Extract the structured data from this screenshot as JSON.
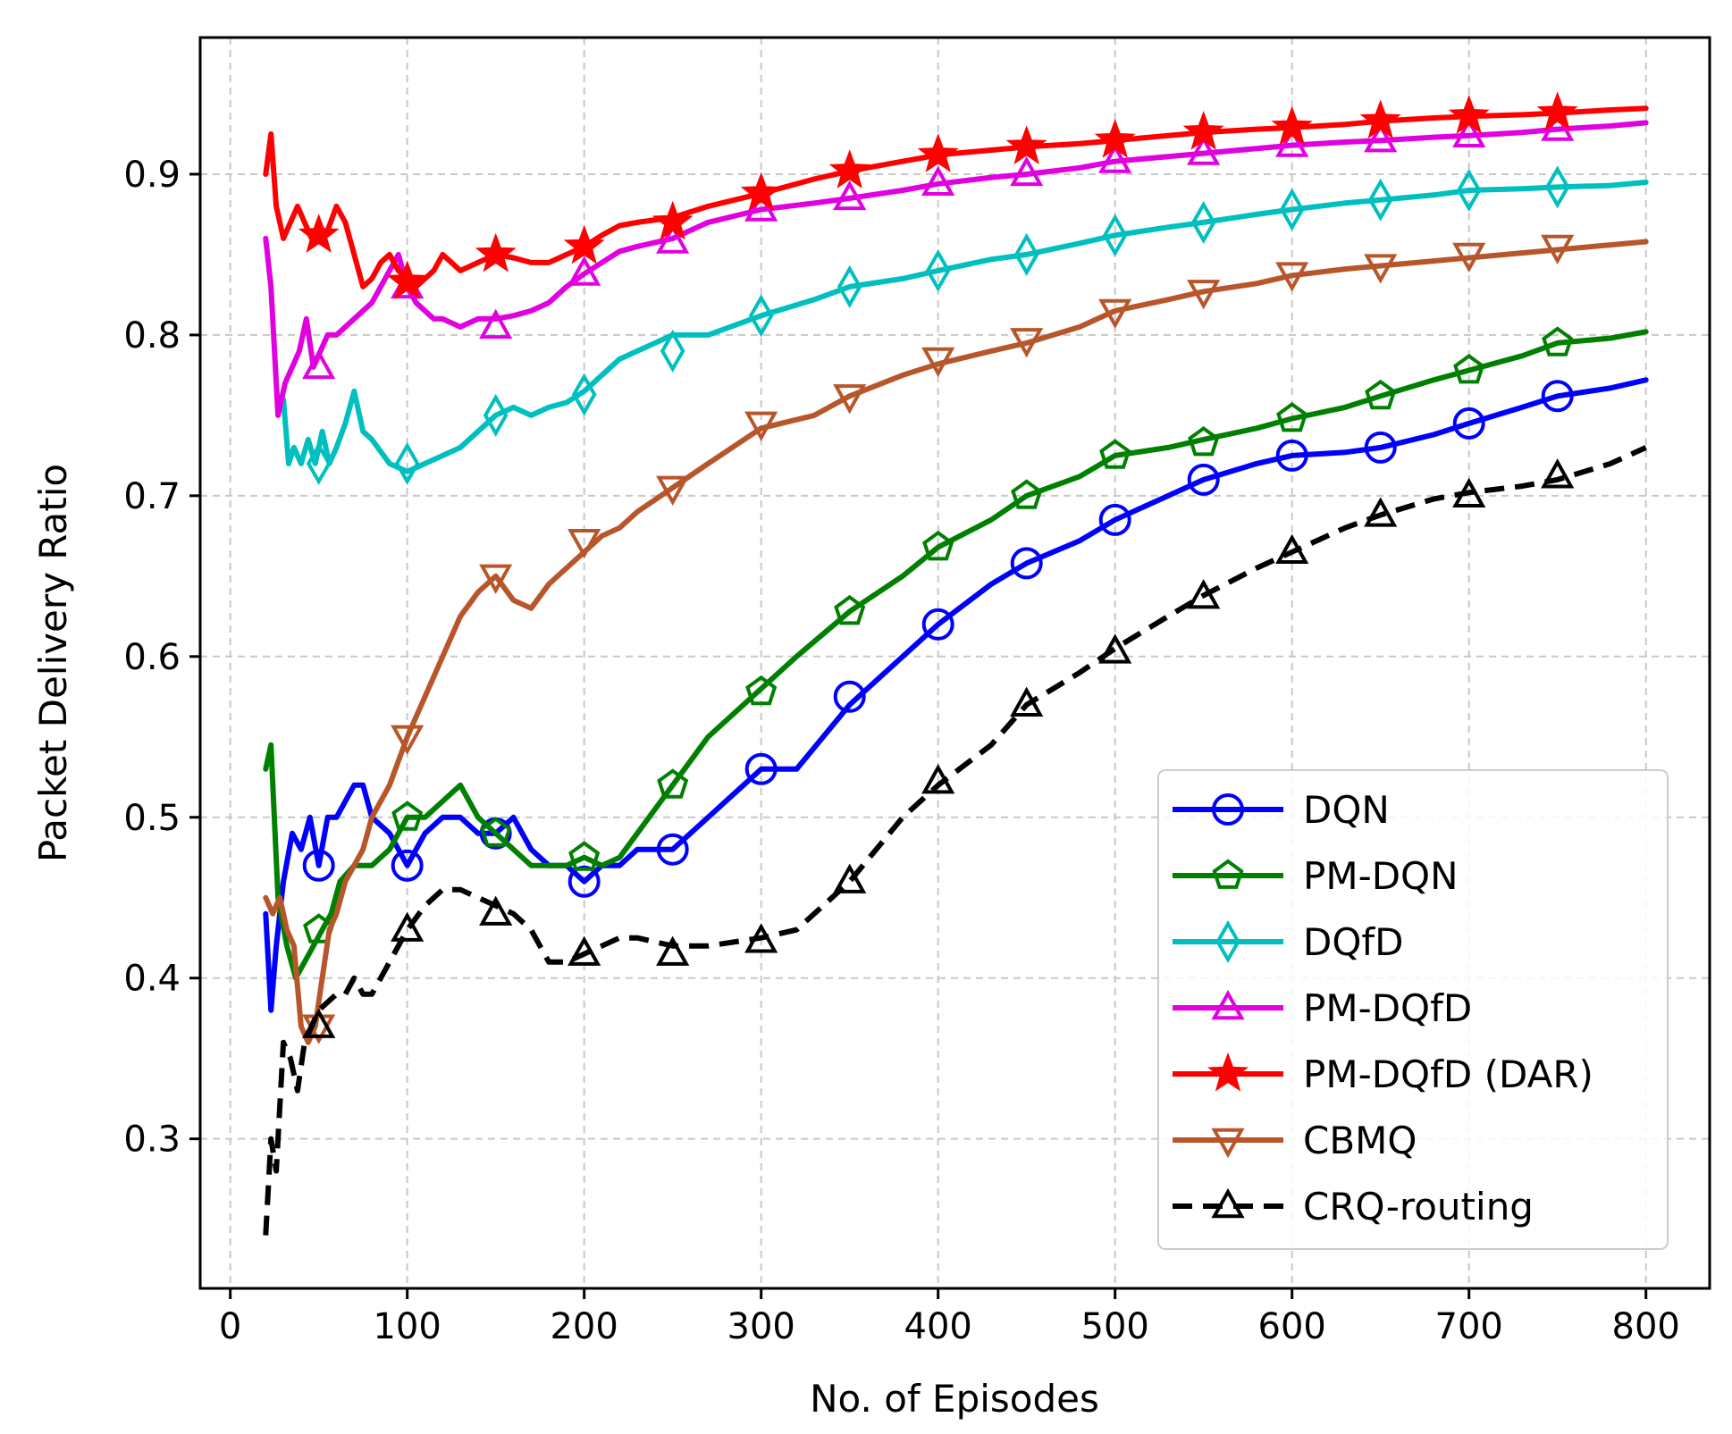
{
  "chart_data": {
    "type": "line",
    "title": "",
    "xlabel": "No. of Episodes",
    "ylabel": "Packet Delivery Ratio",
    "xlim": [
      -17,
      836
    ],
    "ylim": [
      0.207,
      0.985
    ],
    "xticks": [
      0,
      100,
      200,
      300,
      400,
      500,
      600,
      700,
      800
    ],
    "xtick_labels": [
      "0",
      "100",
      "200",
      "300",
      "400",
      "500",
      "600",
      "700",
      "800"
    ],
    "yticks": [
      0.3,
      0.4,
      0.5,
      0.6,
      0.7,
      0.8,
      0.9
    ],
    "ytick_labels": [
      "0.3",
      "0.4",
      "0.5",
      "0.6",
      "0.7",
      "0.8",
      "0.9"
    ],
    "grid": true,
    "legend_position": "lower-right",
    "series": [
      {
        "name": "DQN",
        "color": "#0000ff",
        "marker": "circle",
        "dash": "solid",
        "x": [
          20,
          23,
          26,
          30,
          35,
          40,
          45,
          50,
          55,
          60,
          65,
          70,
          75,
          80,
          90,
          100,
          110,
          120,
          130,
          140,
          150,
          160,
          170,
          180,
          190,
          200,
          210,
          220,
          230,
          250,
          270,
          300,
          320,
          350,
          380,
          400,
          430,
          450,
          480,
          500,
          530,
          550,
          580,
          600,
          630,
          650,
          680,
          700,
          730,
          750,
          780,
          800
        ],
        "y": [
          0.44,
          0.38,
          0.42,
          0.46,
          0.49,
          0.48,
          0.5,
          0.47,
          0.5,
          0.5,
          0.51,
          0.52,
          0.52,
          0.5,
          0.49,
          0.47,
          0.49,
          0.5,
          0.5,
          0.49,
          0.49,
          0.5,
          0.48,
          0.47,
          0.47,
          0.46,
          0.47,
          0.47,
          0.48,
          0.48,
          0.5,
          0.53,
          0.53,
          0.57,
          0.6,
          0.62,
          0.645,
          0.658,
          0.672,
          0.685,
          0.7,
          0.71,
          0.72,
          0.725,
          0.727,
          0.73,
          0.738,
          0.745,
          0.755,
          0.762,
          0.767,
          0.772
        ],
        "marker_x": [
          50,
          100,
          150,
          200,
          250,
          300,
          350,
          400,
          450,
          500,
          550,
          600,
          650,
          700,
          750
        ],
        "marker_y": [
          0.47,
          0.47,
          0.49,
          0.46,
          0.48,
          0.53,
          0.575,
          0.62,
          0.658,
          0.685,
          0.71,
          0.725,
          0.73,
          0.745,
          0.762
        ]
      },
      {
        "name": "PM-DQN",
        "color": "#008000",
        "marker": "pentagon",
        "dash": "solid",
        "x": [
          20,
          23,
          27,
          32,
          37,
          42,
          47,
          52,
          57,
          62,
          70,
          80,
          90,
          100,
          110,
          120,
          130,
          140,
          150,
          160,
          170,
          180,
          190,
          200,
          210,
          220,
          230,
          250,
          270,
          300,
          320,
          350,
          380,
          400,
          430,
          450,
          480,
          500,
          530,
          550,
          580,
          600,
          630,
          650,
          680,
          700,
          730,
          750,
          780,
          800
        ],
        "y": [
          0.53,
          0.545,
          0.45,
          0.42,
          0.4,
          0.41,
          0.42,
          0.43,
          0.44,
          0.46,
          0.47,
          0.47,
          0.48,
          0.5,
          0.5,
          0.51,
          0.52,
          0.5,
          0.49,
          0.48,
          0.47,
          0.47,
          0.47,
          0.475,
          0.47,
          0.475,
          0.49,
          0.52,
          0.55,
          0.58,
          0.6,
          0.628,
          0.65,
          0.668,
          0.685,
          0.7,
          0.712,
          0.725,
          0.73,
          0.735,
          0.742,
          0.748,
          0.755,
          0.762,
          0.772,
          0.778,
          0.787,
          0.795,
          0.798,
          0.802
        ],
        "marker_x": [
          50,
          100,
          150,
          200,
          250,
          300,
          350,
          400,
          450,
          500,
          550,
          600,
          650,
          700,
          750
        ],
        "marker_y": [
          0.43,
          0.5,
          0.49,
          0.475,
          0.52,
          0.578,
          0.628,
          0.668,
          0.7,
          0.725,
          0.733,
          0.748,
          0.762,
          0.778,
          0.795
        ]
      },
      {
        "name": "DQfD",
        "color": "#00bfbf",
        "marker": "diamond",
        "dash": "solid",
        "x": [
          30,
          33,
          36,
          40,
          44,
          48,
          52,
          56,
          60,
          65,
          70,
          75,
          80,
          90,
          100,
          110,
          120,
          130,
          140,
          150,
          160,
          170,
          180,
          190,
          200,
          210,
          220,
          230,
          250,
          270,
          300,
          330,
          350,
          380,
          400,
          430,
          450,
          480,
          500,
          530,
          550,
          580,
          600,
          630,
          650,
          680,
          700,
          730,
          750,
          780,
          800
        ],
        "y": [
          0.76,
          0.72,
          0.73,
          0.72,
          0.735,
          0.72,
          0.74,
          0.72,
          0.73,
          0.745,
          0.765,
          0.74,
          0.735,
          0.72,
          0.715,
          0.72,
          0.725,
          0.73,
          0.74,
          0.75,
          0.755,
          0.75,
          0.755,
          0.758,
          0.765,
          0.775,
          0.785,
          0.79,
          0.8,
          0.8,
          0.812,
          0.822,
          0.83,
          0.835,
          0.84,
          0.847,
          0.85,
          0.857,
          0.862,
          0.867,
          0.87,
          0.875,
          0.878,
          0.882,
          0.884,
          0.887,
          0.89,
          0.891,
          0.892,
          0.893,
          0.895
        ],
        "marker_x": [
          50,
          100,
          150,
          200,
          250,
          300,
          350,
          400,
          450,
          500,
          550,
          600,
          650,
          700,
          750
        ],
        "marker_y": [
          0.72,
          0.72,
          0.75,
          0.763,
          0.79,
          0.812,
          0.83,
          0.84,
          0.85,
          0.862,
          0.87,
          0.878,
          0.884,
          0.89,
          0.892
        ]
      },
      {
        "name": "PM-DQfD",
        "color": "#e000e0",
        "marker": "triangle-up",
        "dash": "solid",
        "x": [
          20,
          23,
          27,
          31,
          35,
          39,
          43,
          47,
          51,
          55,
          60,
          65,
          70,
          75,
          80,
          85,
          90,
          95,
          100,
          105,
          110,
          115,
          120,
          130,
          140,
          150,
          160,
          170,
          180,
          190,
          200,
          210,
          220,
          230,
          250,
          270,
          300,
          330,
          350,
          380,
          400,
          430,
          450,
          480,
          500,
          530,
          550,
          580,
          600,
          630,
          650,
          680,
          700,
          730,
          750,
          780,
          800
        ],
        "y": [
          0.86,
          0.83,
          0.75,
          0.77,
          0.78,
          0.79,
          0.81,
          0.78,
          0.79,
          0.8,
          0.8,
          0.805,
          0.81,
          0.815,
          0.82,
          0.83,
          0.84,
          0.85,
          0.83,
          0.82,
          0.815,
          0.81,
          0.81,
          0.805,
          0.81,
          0.81,
          0.812,
          0.815,
          0.82,
          0.83,
          0.838,
          0.845,
          0.852,
          0.855,
          0.86,
          0.87,
          0.878,
          0.882,
          0.885,
          0.89,
          0.894,
          0.898,
          0.9,
          0.904,
          0.908,
          0.911,
          0.913,
          0.916,
          0.918,
          0.92,
          0.921,
          0.923,
          0.924,
          0.926,
          0.928,
          0.93,
          0.932
        ],
        "marker_x": [
          50,
          100,
          150,
          200,
          250,
          300,
          350,
          400,
          450,
          500,
          550,
          600,
          650,
          700,
          750
        ],
        "marker_y": [
          0.78,
          0.83,
          0.805,
          0.838,
          0.858,
          0.878,
          0.885,
          0.894,
          0.9,
          0.908,
          0.913,
          0.918,
          0.921,
          0.924,
          0.928
        ]
      },
      {
        "name": "PM-DQfD (DAR)",
        "color": "#ff0000",
        "marker": "star",
        "dash": "solid",
        "x": [
          20,
          23,
          26,
          30,
          34,
          38,
          42,
          46,
          50,
          55,
          60,
          65,
          70,
          75,
          80,
          85,
          90,
          95,
          100,
          105,
          110,
          115,
          120,
          130,
          140,
          150,
          160,
          170,
          180,
          190,
          200,
          210,
          220,
          230,
          250,
          270,
          300,
          330,
          350,
          380,
          400,
          430,
          450,
          480,
          500,
          530,
          550,
          580,
          600,
          630,
          650,
          680,
          700,
          730,
          750,
          780,
          800
        ],
        "y": [
          0.9,
          0.925,
          0.88,
          0.86,
          0.87,
          0.88,
          0.87,
          0.86,
          0.86,
          0.865,
          0.88,
          0.87,
          0.85,
          0.83,
          0.835,
          0.845,
          0.85,
          0.84,
          0.835,
          0.83,
          0.835,
          0.84,
          0.85,
          0.84,
          0.845,
          0.85,
          0.848,
          0.845,
          0.845,
          0.85,
          0.855,
          0.862,
          0.868,
          0.87,
          0.873,
          0.88,
          0.888,
          0.897,
          0.902,
          0.908,
          0.912,
          0.915,
          0.917,
          0.919,
          0.921,
          0.924,
          0.926,
          0.928,
          0.929,
          0.931,
          0.933,
          0.935,
          0.936,
          0.937,
          0.938,
          0.94,
          0.941
        ],
        "marker_x": [
          50,
          100,
          150,
          200,
          250,
          300,
          350,
          400,
          450,
          500,
          550,
          600,
          650,
          700,
          750
        ],
        "marker_y": [
          0.862,
          0.833,
          0.85,
          0.855,
          0.87,
          0.888,
          0.902,
          0.912,
          0.917,
          0.921,
          0.926,
          0.929,
          0.933,
          0.936,
          0.938
        ]
      },
      {
        "name": "CBMQ",
        "color": "#b8562b",
        "marker": "triangle-down",
        "dash": "solid",
        "x": [
          20,
          24,
          28,
          32,
          36,
          40,
          44,
          48,
          52,
          56,
          60,
          65,
          70,
          75,
          80,
          90,
          100,
          110,
          120,
          130,
          140,
          150,
          160,
          170,
          180,
          190,
          200,
          210,
          220,
          230,
          250,
          270,
          300,
          330,
          350,
          380,
          400,
          430,
          450,
          480,
          500,
          530,
          550,
          580,
          600,
          630,
          650,
          680,
          700,
          730,
          750,
          780,
          800
        ],
        "y": [
          0.45,
          0.44,
          0.45,
          0.43,
          0.42,
          0.37,
          0.36,
          0.37,
          0.4,
          0.43,
          0.44,
          0.46,
          0.47,
          0.48,
          0.5,
          0.52,
          0.55,
          0.575,
          0.6,
          0.625,
          0.64,
          0.65,
          0.635,
          0.63,
          0.645,
          0.655,
          0.665,
          0.675,
          0.68,
          0.69,
          0.705,
          0.72,
          0.742,
          0.75,
          0.762,
          0.775,
          0.782,
          0.79,
          0.795,
          0.805,
          0.815,
          0.822,
          0.827,
          0.832,
          0.837,
          0.841,
          0.843,
          0.846,
          0.848,
          0.851,
          0.853,
          0.856,
          0.858
        ],
        "marker_x": [
          50,
          100,
          150,
          200,
          250,
          300,
          350,
          400,
          450,
          500,
          550,
          600,
          650,
          700,
          750
        ],
        "marker_y": [
          0.37,
          0.55,
          0.65,
          0.672,
          0.705,
          0.745,
          0.762,
          0.785,
          0.797,
          0.815,
          0.827,
          0.838,
          0.843,
          0.85,
          0.855
        ]
      },
      {
        "name": "CRQ-routing",
        "color": "#000000",
        "marker": "triangle-up",
        "dash": "dashed",
        "x": [
          20,
          23,
          26,
          30,
          34,
          38,
          42,
          46,
          50,
          55,
          60,
          65,
          70,
          75,
          80,
          90,
          100,
          110,
          120,
          130,
          140,
          150,
          160,
          170,
          180,
          190,
          200,
          210,
          220,
          230,
          250,
          270,
          300,
          320,
          350,
          380,
          400,
          430,
          450,
          480,
          500,
          530,
          550,
          580,
          600,
          630,
          650,
          680,
          700,
          730,
          750,
          780,
          800
        ],
        "y": [
          0.24,
          0.3,
          0.28,
          0.36,
          0.35,
          0.33,
          0.36,
          0.37,
          0.38,
          0.385,
          0.39,
          0.39,
          0.4,
          0.39,
          0.39,
          0.41,
          0.43,
          0.445,
          0.455,
          0.455,
          0.45,
          0.445,
          0.44,
          0.43,
          0.41,
          0.41,
          0.415,
          0.42,
          0.425,
          0.425,
          0.42,
          0.42,
          0.425,
          0.43,
          0.46,
          0.5,
          0.52,
          0.545,
          0.57,
          0.59,
          0.605,
          0.625,
          0.638,
          0.655,
          0.665,
          0.68,
          0.688,
          0.698,
          0.702,
          0.706,
          0.71,
          0.72,
          0.73
        ],
        "marker_x": [
          50,
          100,
          150,
          200,
          250,
          300,
          350,
          400,
          450,
          500,
          550,
          600,
          650,
          700,
          750
        ],
        "marker_y": [
          0.37,
          0.43,
          0.44,
          0.415,
          0.415,
          0.423,
          0.46,
          0.522,
          0.57,
          0.603,
          0.637,
          0.665,
          0.688,
          0.7,
          0.712
        ]
      }
    ]
  }
}
